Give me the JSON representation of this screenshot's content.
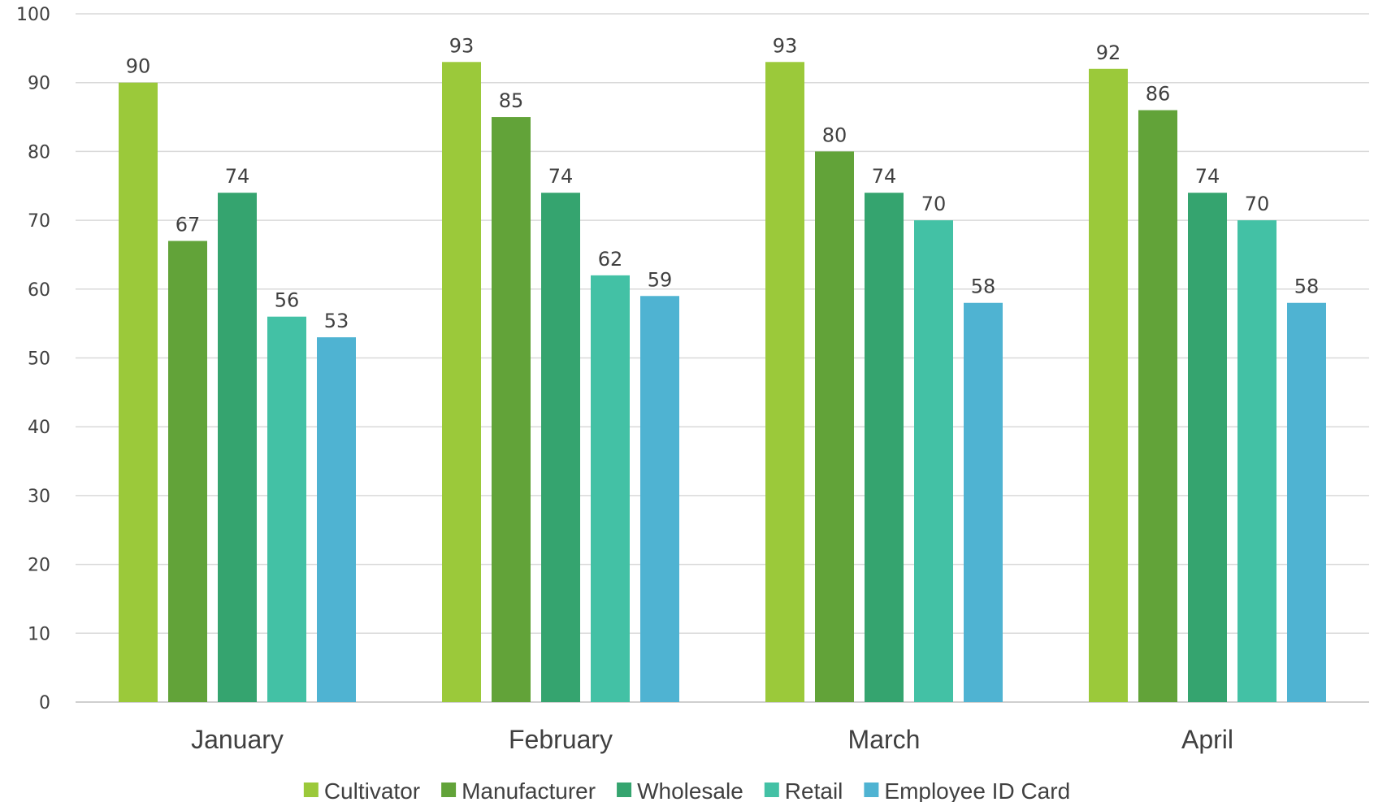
{
  "chart_data": {
    "type": "bar",
    "title": "",
    "xlabel": "",
    "ylabel": "",
    "ylim": [
      0,
      100
    ],
    "yticks": [
      0,
      10,
      20,
      30,
      40,
      50,
      60,
      70,
      80,
      90,
      100
    ],
    "grid": true,
    "legend_position": "bottom",
    "categories": [
      "January",
      "February",
      "March",
      "April"
    ],
    "series": [
      {
        "name": "Cultivator",
        "color": "#9bc93a",
        "values": [
          90,
          93,
          93,
          92
        ]
      },
      {
        "name": "Manufacturer",
        "color": "#62a339",
        "values": [
          67,
          85,
          80,
          86
        ]
      },
      {
        "name": "Wholesale",
        "color": "#35a46f",
        "values": [
          74,
          74,
          74,
          74
        ]
      },
      {
        "name": "Retail",
        "color": "#43c1a5",
        "values": [
          56,
          62,
          70,
          70
        ]
      },
      {
        "name": "Employee ID Card",
        "color": "#4fb3d2",
        "values": [
          53,
          59,
          58,
          58
        ]
      }
    ]
  }
}
